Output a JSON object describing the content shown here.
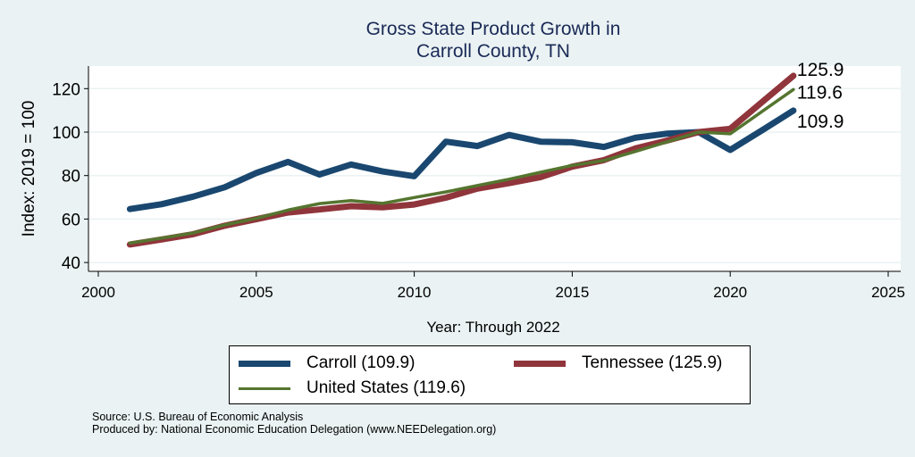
{
  "chart_data": {
    "type": "line",
    "title": "Gross State Product Growth in Carroll County, TN",
    "title_lines": [
      "Gross State Product Growth in",
      "Carroll County, TN"
    ],
    "xlabel": "Year: Through 2022",
    "ylabel": "Index: 2019 = 100",
    "xlim": [
      2000,
      2025
    ],
    "ylim": [
      36,
      130
    ],
    "x_ticks": [
      2000,
      2005,
      2010,
      2015,
      2020,
      2025
    ],
    "y_ticks": [
      40,
      60,
      80,
      100,
      120
    ],
    "grid": true,
    "legend_position": "bottom",
    "x": [
      2001,
      2002,
      2003,
      2004,
      2005,
      2006,
      2007,
      2008,
      2009,
      2010,
      2011,
      2012,
      2013,
      2014,
      2015,
      2016,
      2017,
      2018,
      2019,
      2020,
      2021,
      2022
    ],
    "series": [
      {
        "name": "Carroll",
        "legend_label": "Carroll  (109.9)",
        "color": "#1a476f",
        "values": [
          64.6,
          66.8,
          70.3,
          74.6,
          81.2,
          86.3,
          80.5,
          85.1,
          81.9,
          79.7,
          95.6,
          93.6,
          98.7,
          95.6,
          95.3,
          93.2,
          97.4,
          99.3,
          100.0,
          91.8,
          100.8,
          109.9
        ],
        "end_label": "109.9"
      },
      {
        "name": "Tennessee",
        "legend_label": "Tennessee (125.9)",
        "color": "#90353b",
        "values": [
          48.3,
          50.6,
          53.0,
          56.9,
          59.9,
          63.0,
          64.4,
          65.9,
          65.4,
          66.7,
          69.8,
          74.0,
          76.5,
          79.3,
          84.1,
          87.1,
          92.5,
          96.1,
          100.0,
          101.5,
          113.7,
          125.9
        ],
        "end_label": "125.9"
      },
      {
        "name": "United States",
        "legend_label": "United States (119.6)",
        "color": "#55752f",
        "values": [
          48.9,
          51.2,
          53.6,
          57.3,
          60.3,
          64.1,
          67.1,
          68.5,
          67.2,
          69.9,
          72.5,
          75.4,
          78.3,
          81.5,
          84.7,
          86.9,
          91.1,
          95.5,
          100.0,
          99.2,
          109.4,
          119.6
        ],
        "end_label": "119.6"
      }
    ]
  },
  "footer": {
    "source": "Source: U.S. Bureau of Economic Analysis",
    "produced_by": "Produced by: National Economic Education Delegation (www.NEEDelegation.org)"
  }
}
